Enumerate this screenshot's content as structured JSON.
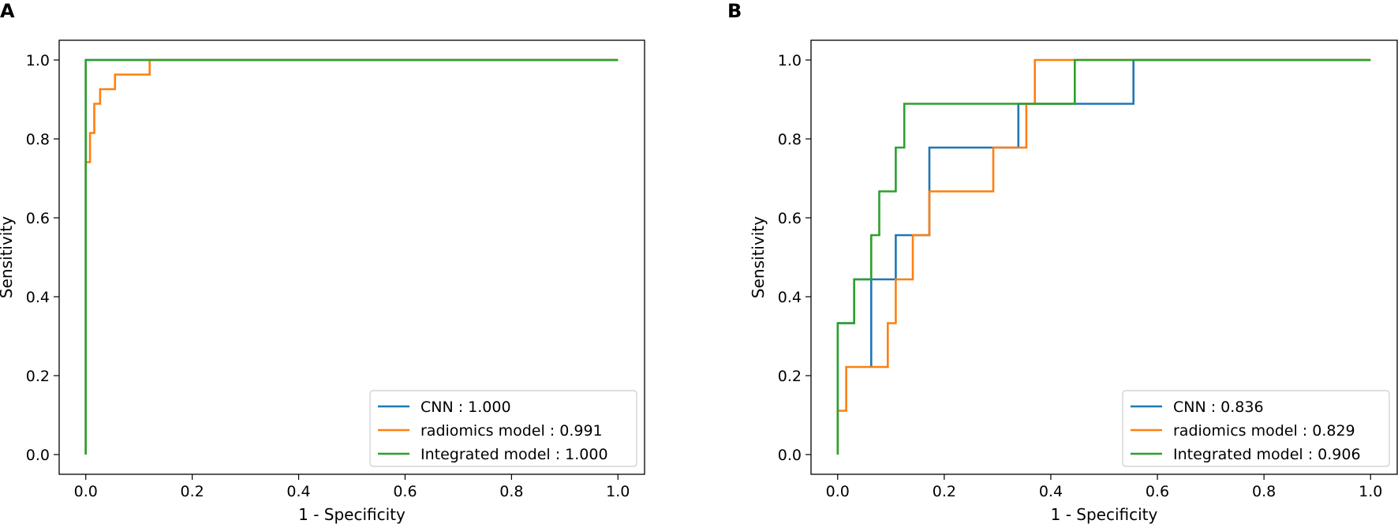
{
  "chart_data": [
    {
      "panel_label": "A",
      "type": "line",
      "title": "",
      "xlabel": "1 - Specificity",
      "ylabel": "Sensitivity",
      "xlim": [
        -0.05,
        1.05
      ],
      "ylim": [
        -0.05,
        1.05
      ],
      "xticks": [
        "0.0",
        "0.2",
        "0.4",
        "0.6",
        "0.8",
        "1.0"
      ],
      "yticks": [
        "0.0",
        "0.2",
        "0.4",
        "0.6",
        "0.8",
        "1.0"
      ],
      "legend_position": "lower-right",
      "series": [
        {
          "name": "CNN : 1.000",
          "color": "#1f77b4",
          "points": [
            [
              0,
              0
            ],
            [
              0,
              1
            ],
            [
              1,
              1
            ]
          ]
        },
        {
          "name": "radiomics model : 0.991",
          "color": "#ff7f0e",
          "points": [
            [
              0,
              0
            ],
            [
              0,
              0.741
            ],
            [
              0.008,
              0.741
            ],
            [
              0.008,
              0.815
            ],
            [
              0.016,
              0.815
            ],
            [
              0.016,
              0.889
            ],
            [
              0.027,
              0.889
            ],
            [
              0.027,
              0.926
            ],
            [
              0.055,
              0.926
            ],
            [
              0.055,
              0.963
            ],
            [
              0.12,
              0.963
            ],
            [
              0.12,
              1
            ],
            [
              1,
              1
            ]
          ]
        },
        {
          "name": "Integrated model : 1.000",
          "color": "#2ca02c",
          "points": [
            [
              0,
              0
            ],
            [
              0,
              1
            ],
            [
              1,
              1
            ]
          ]
        }
      ]
    },
    {
      "panel_label": "B",
      "type": "line",
      "title": "",
      "xlabel": "1 - Specificity",
      "ylabel": "Sensitivity",
      "xlim": [
        -0.05,
        1.05
      ],
      "ylim": [
        -0.05,
        1.05
      ],
      "xticks": [
        "0.0",
        "0.2",
        "0.4",
        "0.6",
        "0.8",
        "1.0"
      ],
      "yticks": [
        "0.0",
        "0.2",
        "0.4",
        "0.6",
        "0.8",
        "1.0"
      ],
      "legend_position": "lower-right",
      "series": [
        {
          "name": "CNN : 0.836",
          "color": "#1f77b4",
          "points": [
            [
              0,
              0
            ],
            [
              0,
              0.333
            ],
            [
              0.031,
              0.333
            ],
            [
              0.031,
              0.444
            ],
            [
              0.063,
              0.444
            ],
            [
              0.063,
              0.222
            ],
            [
              0.063,
              0.444
            ],
            [
              0.109,
              0.444
            ],
            [
              0.109,
              0.556
            ],
            [
              0.172,
              0.556
            ],
            [
              0.172,
              0.778
            ],
            [
              0.339,
              0.778
            ],
            [
              0.339,
              0.889
            ],
            [
              0.555,
              0.889
            ],
            [
              0.555,
              1
            ],
            [
              1,
              1
            ]
          ]
        },
        {
          "name": "radiomics model : 0.829",
          "color": "#ff7f0e",
          "points": [
            [
              0,
              0
            ],
            [
              0,
              0.111
            ],
            [
              0.016,
              0.111
            ],
            [
              0.016,
              0.222
            ],
            [
              0.094,
              0.222
            ],
            [
              0.094,
              0.333
            ],
            [
              0.109,
              0.333
            ],
            [
              0.109,
              0.444
            ],
            [
              0.141,
              0.444
            ],
            [
              0.141,
              0.556
            ],
            [
              0.172,
              0.556
            ],
            [
              0.172,
              0.667
            ],
            [
              0.292,
              0.667
            ],
            [
              0.292,
              0.778
            ],
            [
              0.354,
              0.778
            ],
            [
              0.354,
              0.889
            ],
            [
              0.37,
              0.889
            ],
            [
              0.37,
              1
            ],
            [
              1,
              1
            ]
          ]
        },
        {
          "name": "Integrated model : 0.906",
          "color": "#2ca02c",
          "points": [
            [
              0,
              0
            ],
            [
              0,
              0.333
            ],
            [
              0.031,
              0.333
            ],
            [
              0.031,
              0.444
            ],
            [
              0.063,
              0.444
            ],
            [
              0.063,
              0.556
            ],
            [
              0.078,
              0.556
            ],
            [
              0.078,
              0.667
            ],
            [
              0.109,
              0.667
            ],
            [
              0.109,
              0.778
            ],
            [
              0.125,
              0.778
            ],
            [
              0.125,
              0.889
            ],
            [
              0.445,
              0.889
            ],
            [
              0.445,
              1
            ],
            [
              1,
              1
            ]
          ]
        }
      ]
    }
  ]
}
